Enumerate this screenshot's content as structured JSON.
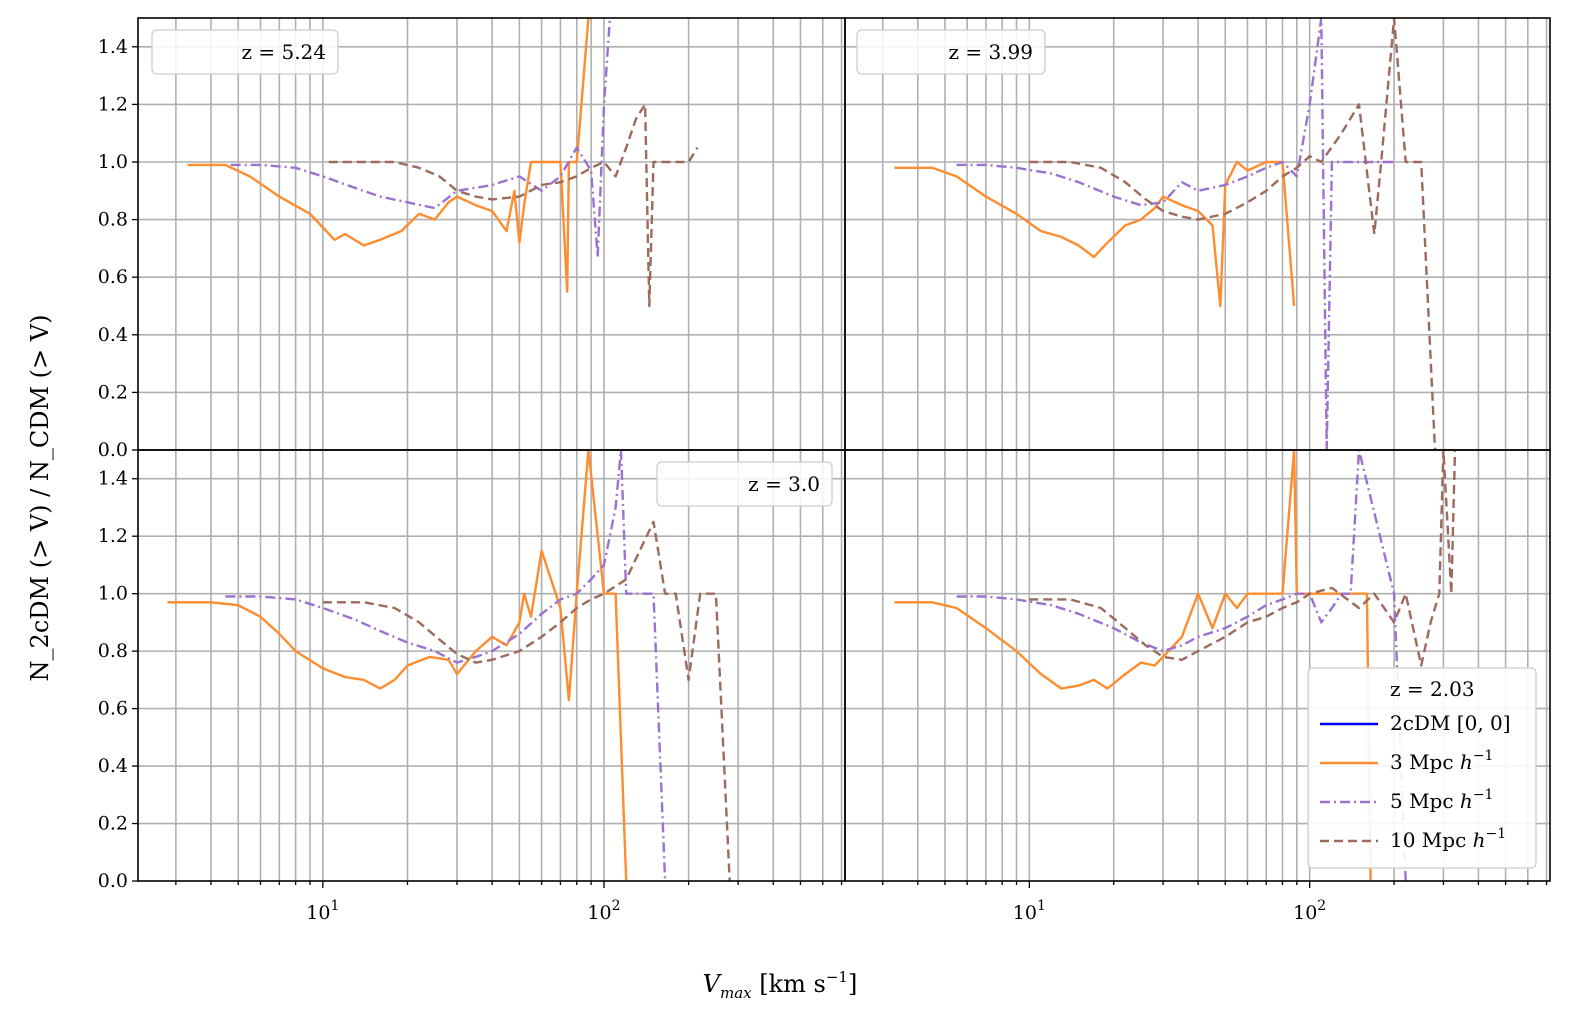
{
  "chart_data": {
    "type": "line",
    "layout": "2x2 grid, shared axes",
    "xlabel_main": "V",
    "xlabel_sub": "max",
    "xlabel_unit_pre": " [km s",
    "xlabel_unit_sup": "−1",
    "xlabel_unit_post": "]",
    "ylabel": "N_2cDM (> V) / N_CDM (> V)",
    "xscale": "log",
    "xlim": [
      2.2,
      720
    ],
    "ylim": [
      0,
      1.5
    ],
    "xticks": [
      {
        "base": "10",
        "exp": "1"
      },
      {
        "base": "10",
        "exp": "2"
      }
    ],
    "yticks": [
      "0.0",
      "0.2",
      "0.4",
      "0.6",
      "0.8",
      "1.0",
      "1.2",
      "1.4"
    ],
    "grid": true,
    "legend_series": [
      {
        "name": "2cDM [0, 0]",
        "unit_sup": "",
        "color": "#0000ee",
        "dash": "solid"
      },
      {
        "name": "3 Mpc ",
        "unit_sup": "−1",
        "color": "#ff8c2e",
        "dash": "solid"
      },
      {
        "name": "5 Mpc ",
        "unit_sup": "−1",
        "color": "#9b72cf",
        "dash": "dashdot"
      },
      {
        "name": "10 Mpc ",
        "unit_sup": "−1",
        "color": "#9c6b5c",
        "dash": "dashed"
      }
    ],
    "panels": [
      {
        "title": "z = 5.24",
        "series": [
          {
            "name": "3 Mpc h^-1",
            "x": [
              3.3,
              4.5,
              5.5,
              7,
              9,
              11,
              12,
              14,
              16,
              19,
              22,
              25,
              28,
              30,
              35,
              40,
              45,
              48,
              50,
              52,
              55,
              60,
              70,
              74,
              75,
              80,
              88
            ],
            "y": [
              0.99,
              0.99,
              0.95,
              0.88,
              0.82,
              0.73,
              0.75,
              0.71,
              0.73,
              0.76,
              0.82,
              0.8,
              0.86,
              0.88,
              0.85,
              0.83,
              0.76,
              0.9,
              0.72,
              0.85,
              1.0,
              1.0,
              1.0,
              0.55,
              1.0,
              1.0,
              1.5
            ]
          },
          {
            "name": "5 Mpc h^-1",
            "x": [
              4.7,
              6,
              8,
              10,
              13,
              16,
              20,
              25,
              30,
              40,
              50,
              60,
              70,
              80,
              90,
              95,
              100,
              105
            ],
            "y": [
              0.99,
              0.99,
              0.98,
              0.95,
              0.91,
              0.88,
              0.86,
              0.84,
              0.9,
              0.92,
              0.95,
              0.9,
              0.95,
              1.05,
              0.97,
              0.67,
              1.2,
              1.5
            ]
          },
          {
            "name": "10 Mpc h^-1",
            "x": [
              10.5,
              14,
              18,
              22,
              26,
              30,
              35,
              40,
              50,
              60,
              70,
              80,
              90,
              100,
              110,
              120,
              130,
              140,
              145,
              150,
              155,
              160,
              180,
              200,
              215
            ],
            "y": [
              1.0,
              1.0,
              1.0,
              0.98,
              0.95,
              0.9,
              0.88,
              0.87,
              0.88,
              0.92,
              0.93,
              0.95,
              0.98,
              1.0,
              0.95,
              1.05,
              1.15,
              1.2,
              0.5,
              1.0,
              1.0,
              1.0,
              1.0,
              1.0,
              1.05
            ]
          }
        ]
      },
      {
        "title": "z = 3.99",
        "series": [
          {
            "name": "3 Mpc h^-1",
            "x": [
              3.3,
              4.5,
              5.5,
              7,
              9,
              11,
              13,
              15,
              17,
              19,
              22,
              25,
              28,
              30,
              35,
              40,
              45,
              48,
              50,
              55,
              60,
              70,
              80,
              88
            ],
            "y": [
              0.98,
              0.98,
              0.95,
              0.88,
              0.82,
              0.76,
              0.74,
              0.71,
              0.67,
              0.72,
              0.78,
              0.8,
              0.84,
              0.88,
              0.85,
              0.83,
              0.78,
              0.5,
              0.92,
              1.0,
              0.97,
              1.0,
              1.0,
              0.5
            ]
          },
          {
            "name": "5 Mpc h^-1",
            "x": [
              5.5,
              7,
              9,
              12,
              15,
              20,
              25,
              30,
              35,
              40,
              50,
              60,
              70,
              80,
              90,
              100,
              110,
              115,
              120,
              150,
              200
            ],
            "y": [
              0.99,
              0.99,
              0.98,
              0.96,
              0.93,
              0.88,
              0.85,
              0.86,
              0.93,
              0.9,
              0.92,
              0.95,
              0.98,
              1.0,
              0.95,
              1.2,
              1.5,
              0.0,
              1.0,
              1.0,
              1.0
            ]
          },
          {
            "name": "10 Mpc h^-1",
            "x": [
              10,
              14,
              18,
              22,
              26,
              30,
              35,
              40,
              50,
              60,
              70,
              80,
              90,
              100,
              110,
              130,
              150,
              170,
              180,
              200,
              220,
              250,
              280
            ],
            "y": [
              1.0,
              1.0,
              0.98,
              0.93,
              0.87,
              0.83,
              0.81,
              0.8,
              0.82,
              0.86,
              0.9,
              0.95,
              0.98,
              1.02,
              1.0,
              1.1,
              1.2,
              0.75,
              1.0,
              1.5,
              1.0,
              1.0,
              0.0
            ]
          }
        ]
      },
      {
        "title": "z = 3.0",
        "series": [
          {
            "name": "3 Mpc h^-1",
            "x": [
              2.8,
              4,
              5,
              6,
              7,
              8,
              10,
              12,
              14,
              16,
              18,
              20,
              24,
              28,
              30,
              35,
              40,
              45,
              50,
              52,
              55,
              60,
              70,
              75,
              80,
              88,
              100,
              110,
              120
            ],
            "y": [
              0.97,
              0.97,
              0.96,
              0.92,
              0.86,
              0.8,
              0.74,
              0.71,
              0.7,
              0.67,
              0.7,
              0.75,
              0.78,
              0.77,
              0.72,
              0.8,
              0.85,
              0.82,
              0.9,
              1.0,
              0.92,
              1.15,
              0.95,
              0.63,
              1.0,
              1.5,
              1.0,
              1.0,
              0.0
            ]
          },
          {
            "name": "5 Mpc h^-1",
            "x": [
              4.5,
              6,
              8,
              10,
              13,
              16,
              20,
              25,
              30,
              35,
              40,
              50,
              60,
              70,
              80,
              90,
              100,
              110,
              115,
              120,
              150,
              165
            ],
            "y": [
              0.99,
              0.99,
              0.98,
              0.95,
              0.91,
              0.87,
              0.83,
              0.8,
              0.76,
              0.78,
              0.8,
              0.86,
              0.93,
              0.98,
              1.0,
              1.05,
              1.1,
              1.3,
              1.5,
              1.0,
              1.0,
              0.0
            ]
          },
          {
            "name": "10 Mpc h^-1",
            "x": [
              10,
              14,
              18,
              22,
              26,
              30,
              35,
              40,
              50,
              60,
              70,
              80,
              90,
              100,
              120,
              150,
              165,
              180,
              200,
              220,
              250,
              280
            ],
            "y": [
              0.97,
              0.97,
              0.95,
              0.9,
              0.84,
              0.79,
              0.76,
              0.77,
              0.8,
              0.85,
              0.9,
              0.95,
              0.98,
              1.0,
              1.05,
              1.25,
              1.0,
              1.0,
              0.7,
              1.0,
              1.0,
              0.0
            ]
          }
        ]
      },
      {
        "title": "z = 2.03",
        "series": [
          {
            "name": "3 Mpc h^-1",
            "x": [
              3.3,
              4.5,
              5.5,
              7,
              9,
              11,
              13,
              15,
              17,
              19,
              22,
              25,
              28,
              30,
              35,
              40,
              45,
              50,
              55,
              60,
              70,
              80,
              88,
              90,
              100,
              120,
              160,
              165
            ],
            "y": [
              0.97,
              0.97,
              0.95,
              0.88,
              0.8,
              0.72,
              0.67,
              0.68,
              0.7,
              0.67,
              0.72,
              0.76,
              0.75,
              0.78,
              0.85,
              1.0,
              0.88,
              1.0,
              0.95,
              1.0,
              1.0,
              1.0,
              1.5,
              1.0,
              1.0,
              1.0,
              1.0,
              0.0
            ]
          },
          {
            "name": "5 Mpc h^-1",
            "x": [
              5.5,
              7,
              9,
              12,
              15,
              20,
              25,
              30,
              35,
              40,
              50,
              60,
              70,
              80,
              90,
              100,
              110,
              120,
              130,
              140,
              150,
              200,
              220
            ],
            "y": [
              0.99,
              0.99,
              0.98,
              0.96,
              0.93,
              0.88,
              0.83,
              0.8,
              0.82,
              0.85,
              0.88,
              0.92,
              0.96,
              0.98,
              1.0,
              1.0,
              0.9,
              0.95,
              1.0,
              1.0,
              1.5,
              1.0,
              0.0
            ]
          },
          {
            "name": "10 Mpc h^-1",
            "x": [
              10,
              14,
              18,
              22,
              26,
              30,
              35,
              40,
              50,
              60,
              70,
              80,
              90,
              100,
              120,
              150,
              170,
              200,
              220,
              250,
              270,
              290,
              300,
              320,
              330
            ],
            "y": [
              0.98,
              0.98,
              0.95,
              0.88,
              0.82,
              0.78,
              0.77,
              0.8,
              0.85,
              0.9,
              0.92,
              0.95,
              0.97,
              1.0,
              1.02,
              0.95,
              1.0,
              0.9,
              1.0,
              0.75,
              0.9,
              1.0,
              1.5,
              1.0,
              1.5
            ]
          }
        ]
      }
    ]
  }
}
